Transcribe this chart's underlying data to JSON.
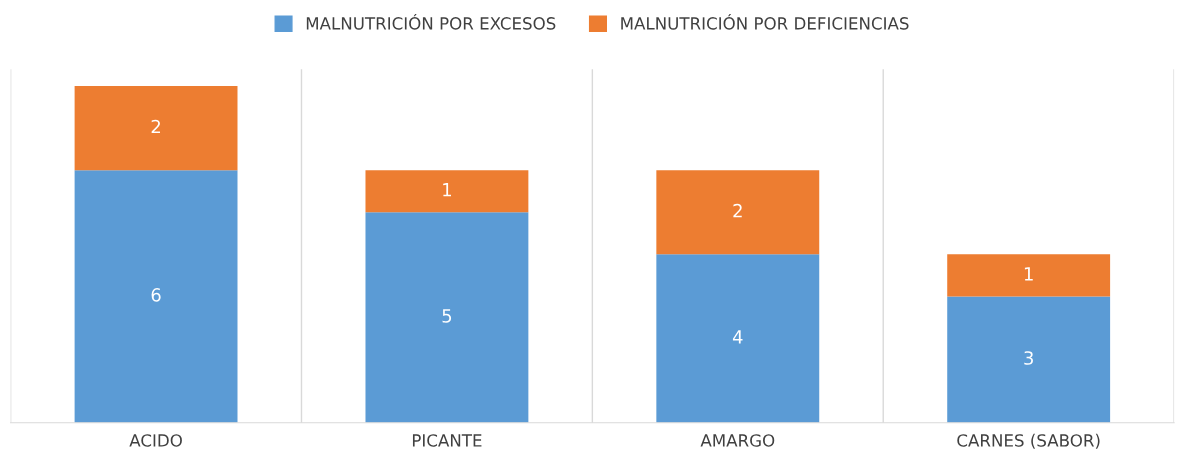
{
  "chart_data": {
    "type": "bar",
    "stacked": true,
    "data_labels": true,
    "legend": "top",
    "grid": "x",
    "categories": [
      "ACIDO",
      "PICANTE",
      "AMARGO",
      "CARNES (SABOR)"
    ],
    "series": [
      {
        "name": "MALNUTRICIÓN POR EXCESOS",
        "color": "#5b9bd5",
        "values": [
          6,
          5,
          4,
          3
        ]
      },
      {
        "name": "MALNUTRICIÓN POR DEFICIENCIAS",
        "color": "#ed7d31",
        "values": [
          2,
          1,
          2,
          1
        ]
      }
    ]
  }
}
